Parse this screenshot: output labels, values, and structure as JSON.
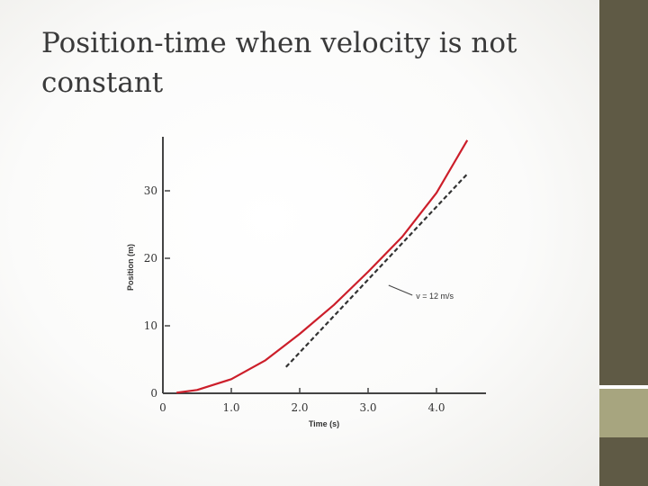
{
  "slide": {
    "title": "Position-time when velocity is not constant"
  },
  "colors": {
    "sidebar": "#5f5a45",
    "sidebar_band": "#a7a57f",
    "curve": "#cc1e2a",
    "tangent": "#333333"
  },
  "chart_data": {
    "type": "line",
    "xlabel": "Time (s)",
    "ylabel": "Position (m)",
    "xlim": [
      0,
      4.6
    ],
    "ylim": [
      0,
      38
    ],
    "x_ticks": [
      {
        "value": 0,
        "label": "0"
      },
      {
        "value": 1,
        "label": "1.0"
      },
      {
        "value": 2,
        "label": "2.0"
      },
      {
        "value": 3,
        "label": "3.0"
      },
      {
        "value": 4,
        "label": "4.0"
      }
    ],
    "y_ticks": [
      {
        "value": 0,
        "label": "0"
      },
      {
        "value": 10,
        "label": "10"
      },
      {
        "value": 20,
        "label": "20"
      },
      {
        "value": 30,
        "label": "30"
      }
    ],
    "grid": false,
    "series": [
      {
        "style": "solid",
        "x": [
          0.2,
          0.5,
          1.0,
          1.5,
          2.0,
          2.5,
          3.0,
          3.5,
          4.0,
          4.45
        ],
        "y": [
          0.1,
          0.5,
          2.1,
          4.9,
          8.8,
          13.1,
          18.0,
          23.2,
          29.7,
          37.5
        ]
      },
      {
        "style": "dashed",
        "x": [
          1.8,
          4.45
        ],
        "y": [
          3.9,
          32.5
        ]
      }
    ],
    "annotations": [
      {
        "text": "v = 12 m/s",
        "x": 3.7,
        "y": 14.0,
        "target_x": 3.3,
        "target_y": 16.0
      }
    ]
  }
}
